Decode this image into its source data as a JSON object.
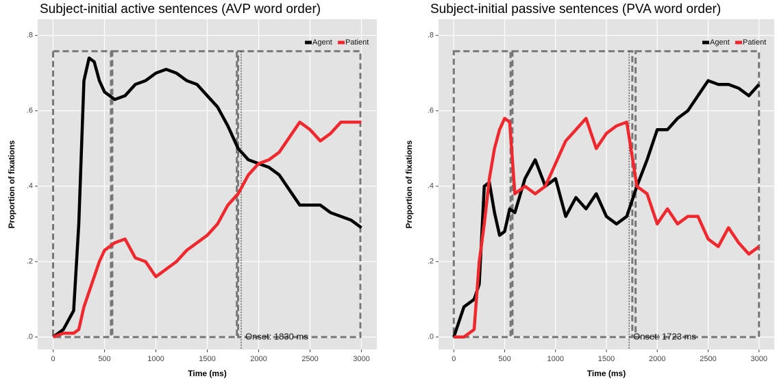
{
  "chart_data": [
    {
      "type": "line",
      "title": "Subject-initial active sentences (AVP word order)",
      "x_label": "Time (ms)",
      "y_label": "Proportion of fixations",
      "x": [
        0,
        100,
        200,
        250,
        300,
        350,
        400,
        450,
        500,
        550,
        600,
        700,
        800,
        900,
        1000,
        1100,
        1200,
        1300,
        1400,
        1500,
        1600,
        1700,
        1800,
        1900,
        2000,
        2100,
        2200,
        2300,
        2400,
        2500,
        2600,
        2700,
        2800,
        2900,
        3000
      ],
      "series": [
        {
          "name": "Agent",
          "color": "#000000",
          "values": [
            0.0,
            0.02,
            0.07,
            0.3,
            0.68,
            0.74,
            0.73,
            0.68,
            0.65,
            0.64,
            0.63,
            0.64,
            0.67,
            0.68,
            0.7,
            0.71,
            0.7,
            0.68,
            0.67,
            0.64,
            0.61,
            0.56,
            0.5,
            0.47,
            0.46,
            0.45,
            0.43,
            0.39,
            0.35,
            0.35,
            0.35,
            0.33,
            0.32,
            0.31,
            0.29
          ]
        },
        {
          "name": "Patient",
          "color": "#f0282d",
          "values": [
            0.0,
            0.01,
            0.01,
            0.02,
            0.08,
            0.12,
            0.16,
            0.2,
            0.23,
            0.24,
            0.25,
            0.26,
            0.21,
            0.2,
            0.16,
            0.18,
            0.2,
            0.23,
            0.25,
            0.27,
            0.3,
            0.35,
            0.38,
            0.43,
            0.46,
            0.47,
            0.49,
            0.53,
            0.57,
            0.55,
            0.52,
            0.54,
            0.57,
            0.57,
            0.57
          ]
        }
      ],
      "xlim": [
        -150,
        3150
      ],
      "ylim": [
        -0.033,
        0.843
      ],
      "xticks": [
        0,
        500,
        1000,
        1500,
        2000,
        2500,
        3000
      ],
      "yticks": [
        {
          "value": 0,
          "label": ".0"
        },
        {
          "value": 0.2,
          "label": ".2"
        },
        {
          "value": 0.4,
          "label": ".4"
        },
        {
          "value": 0.6,
          "label": ".6"
        },
        {
          "value": 0.8,
          "label": ".8"
        }
      ],
      "grid": true,
      "legend": "top-right",
      "regions": [
        [
          0,
          563
        ],
        [
          576,
          1788
        ],
        [
          1800,
          2990
        ]
      ],
      "region_ylim": [
        0,
        0.758
      ],
      "onset": 1830,
      "annotation": "Onset: 1830 ms"
    },
    {
      "type": "line",
      "title": "Subject-initial passive sentences (PVA word order)",
      "x_label": "Time (ms)",
      "y_label": "Proportion of fixations",
      "x": [
        0,
        100,
        200,
        250,
        300,
        350,
        400,
        450,
        500,
        550,
        600,
        700,
        800,
        900,
        1000,
        1100,
        1200,
        1300,
        1400,
        1500,
        1600,
        1700,
        1800,
        1900,
        2000,
        2100,
        2200,
        2300,
        2400,
        2500,
        2600,
        2700,
        2800,
        2900,
        3000
      ],
      "series": [
        {
          "name": "Agent",
          "color": "#000000",
          "values": [
            0.0,
            0.08,
            0.1,
            0.14,
            0.4,
            0.41,
            0.33,
            0.27,
            0.28,
            0.34,
            0.33,
            0.42,
            0.47,
            0.4,
            0.42,
            0.32,
            0.37,
            0.34,
            0.38,
            0.32,
            0.3,
            0.32,
            0.4,
            0.47,
            0.55,
            0.55,
            0.58,
            0.6,
            0.64,
            0.68,
            0.67,
            0.67,
            0.66,
            0.64,
            0.67
          ]
        },
        {
          "name": "Patient",
          "color": "#f0282d",
          "values": [
            0.0,
            0.0,
            0.02,
            0.2,
            0.3,
            0.42,
            0.5,
            0.55,
            0.58,
            0.57,
            0.38,
            0.4,
            0.38,
            0.4,
            0.46,
            0.52,
            0.55,
            0.58,
            0.5,
            0.54,
            0.56,
            0.57,
            0.4,
            0.38,
            0.3,
            0.34,
            0.3,
            0.32,
            0.32,
            0.26,
            0.24,
            0.29,
            0.25,
            0.22,
            0.24
          ]
        }
      ],
      "xlim": [
        -150,
        3150
      ],
      "ylim": [
        -0.033,
        0.843
      ],
      "xticks": [
        0,
        500,
        1000,
        1500,
        2000,
        2500,
        3000
      ],
      "yticks": [
        {
          "value": 0,
          "label": ".0"
        },
        {
          "value": 0.2,
          "label": ".2"
        },
        {
          "value": 0.4,
          "label": ".4"
        },
        {
          "value": 0.6,
          "label": ".6"
        },
        {
          "value": 0.8,
          "label": ".8"
        }
      ],
      "grid": true,
      "legend": "top-right",
      "regions": [
        [
          0,
          558
        ],
        [
          577,
          1755
        ],
        [
          1787,
          3000
        ]
      ],
      "region_ylim": [
        0,
        0.758
      ],
      "onset": 1723,
      "annotation": "Onset: 1723 ms"
    }
  ]
}
